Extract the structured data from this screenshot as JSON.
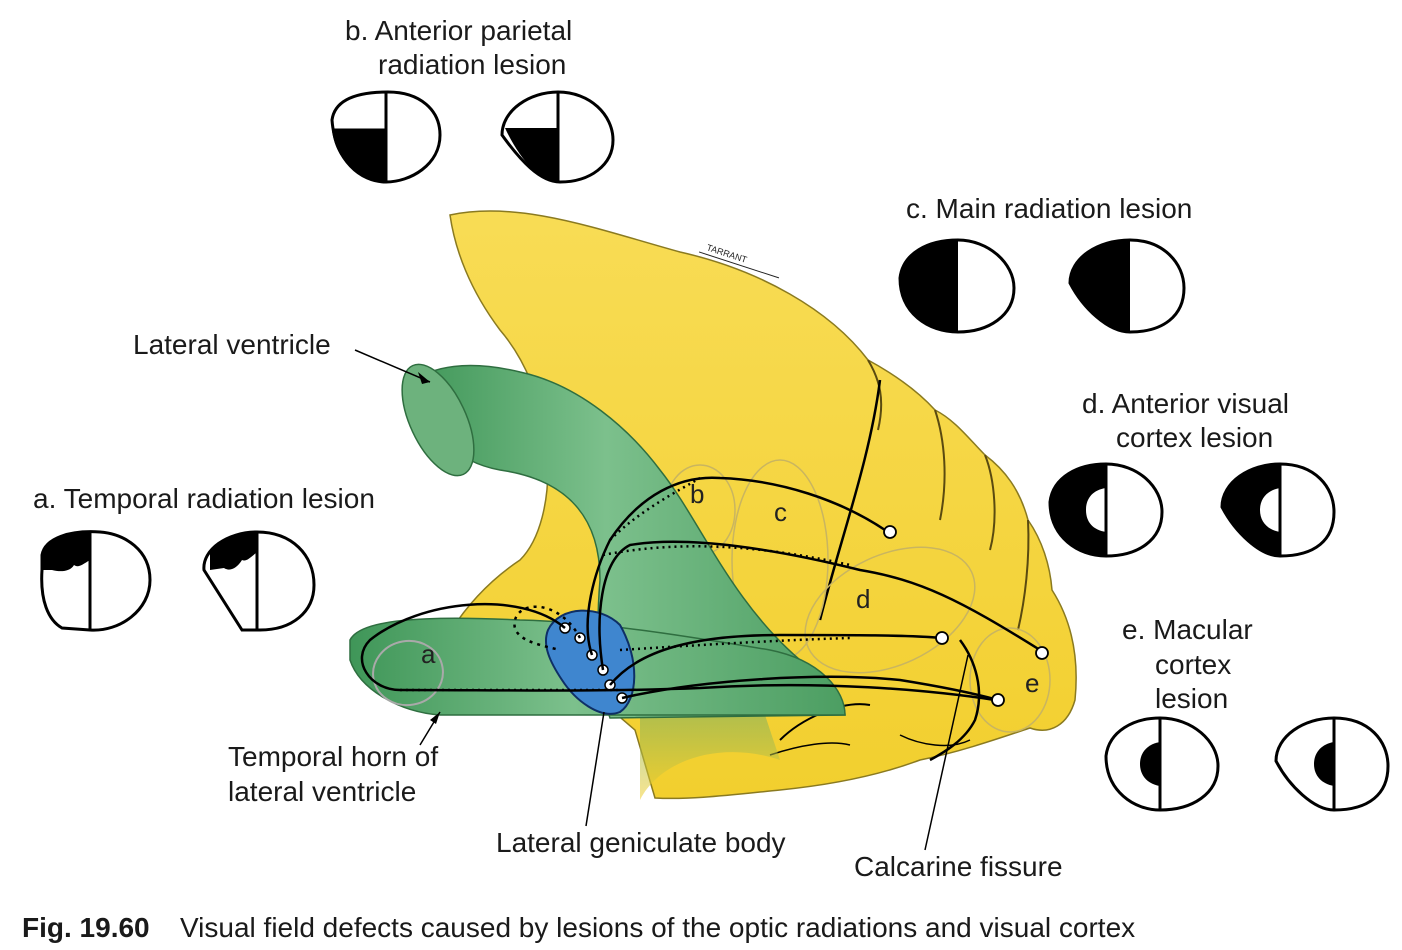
{
  "labels": {
    "lesion_a": "a. Temporal radiation lesion",
    "lesion_b_line1": "b. Anterior parietal",
    "lesion_b_line2": "radiation lesion",
    "lesion_c": "c. Main radiation lesion",
    "lesion_d_line1": "d. Anterior visual",
    "lesion_d_line2": "cortex lesion",
    "lesion_e_line1": "e. Macular",
    "lesion_e_line2": "cortex",
    "lesion_e_line3": "lesion",
    "lateral_ventricle": "Lateral ventricle",
    "temporal_horn_line1": "Temporal horn of",
    "temporal_horn_line2": "lateral ventricle",
    "lateral_geniculate_body": "Lateral geniculate body",
    "calcarine_fissure": "Calcarine fissure",
    "artist_signature": "TARRANT"
  },
  "regions": {
    "a": "a",
    "b": "b",
    "c": "c",
    "d": "d",
    "e": "e"
  },
  "caption": {
    "number": "Fig. 19.60",
    "text": "Visual field defects caused by lesions of the optic radiations and visual cortex"
  },
  "colors": {
    "brain": "#f7d84a",
    "ventricle": "#5aa66e",
    "geniculate": "#3f86cf",
    "field_defect": "#000000"
  }
}
